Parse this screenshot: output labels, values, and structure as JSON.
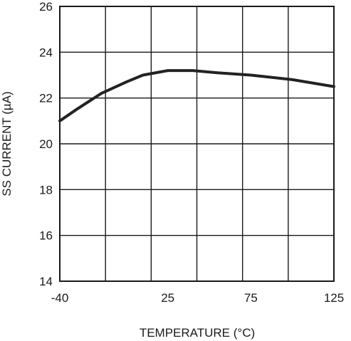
{
  "chart_data": {
    "type": "line",
    "xlabel": "TEMPERATURE (°C)",
    "ylabel": "SS CURRENT (µA)",
    "xlim": [
      -40,
      125
    ],
    "ylim": [
      14,
      26
    ],
    "x_ticks": [
      "-40",
      "25",
      "75",
      "125"
    ],
    "y_ticks": [
      "26",
      "24",
      "22",
      "20",
      "18",
      "16",
      "14"
    ],
    "grid": true,
    "series": [
      {
        "x": [
          -40,
          -30,
          -15,
          0,
          10,
          25,
          40,
          55,
          75,
          100,
          125
        ],
        "y": [
          21.0,
          21.5,
          22.2,
          22.7,
          23.0,
          23.2,
          23.2,
          23.1,
          23.0,
          22.8,
          22.5
        ]
      }
    ]
  }
}
